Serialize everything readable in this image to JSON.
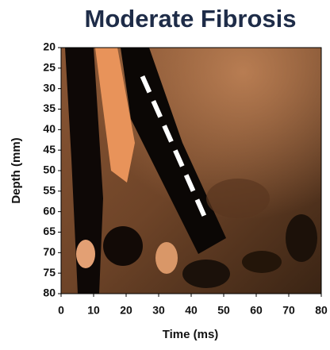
{
  "chart_data": {
    "type": "line",
    "title": "Moderate Fibrosis",
    "x_label": "Time (ms)",
    "y_label": "Depth (mm)",
    "x": [
      25,
      44
    ],
    "values": [
      27,
      61
    ],
    "color": "#ffffff",
    "dashed": true,
    "xlim": [
      0,
      80
    ],
    "xticks": [
      0,
      10,
      20,
      30,
      40,
      50,
      60,
      70,
      80
    ],
    "ylim": [
      80,
      20
    ],
    "yticks": [
      20,
      25,
      30,
      35,
      40,
      45,
      50,
      55,
      60,
      65,
      70,
      75,
      80
    ]
  }
}
